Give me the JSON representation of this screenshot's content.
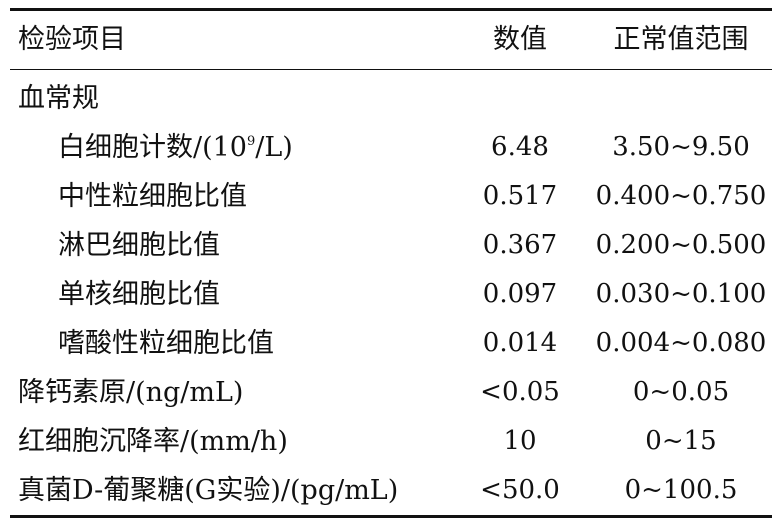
{
  "table": {
    "headers": {
      "item": "检验项目",
      "value": "数值",
      "range": "正常值范围"
    },
    "rows": [
      {
        "item": "血常规",
        "value": "",
        "range": "",
        "indent": false
      },
      {
        "item_prefix": "白细胞计数/(10",
        "item_sup": "9",
        "item_suffix": "/L)",
        "value": "6.48",
        "range": "3.50~9.50",
        "indent": true
      },
      {
        "item": "中性粒细胞比值",
        "value": "0.517",
        "range": "0.400~0.750",
        "indent": true
      },
      {
        "item": "淋巴细胞比值",
        "value": "0.367",
        "range": "0.200~0.500",
        "indent": true
      },
      {
        "item": "单核细胞比值",
        "value": "0.097",
        "range": "0.030~0.100",
        "indent": true
      },
      {
        "item": "嗜酸性粒细胞比值",
        "value": "0.014",
        "range": "0.004~0.080",
        "indent": true
      },
      {
        "item": "降钙素原/(ng/mL)",
        "value": "<0.05",
        "range": "0~0.05",
        "indent": false
      },
      {
        "item": "红细胞沉降率/(mm/h)",
        "value": "10",
        "range": "0~15",
        "indent": false
      },
      {
        "item": "真菌D-葡聚糖(G实验)/(pg/mL)",
        "value": "<50.0",
        "range": "0~100.5",
        "indent": false
      }
    ]
  }
}
